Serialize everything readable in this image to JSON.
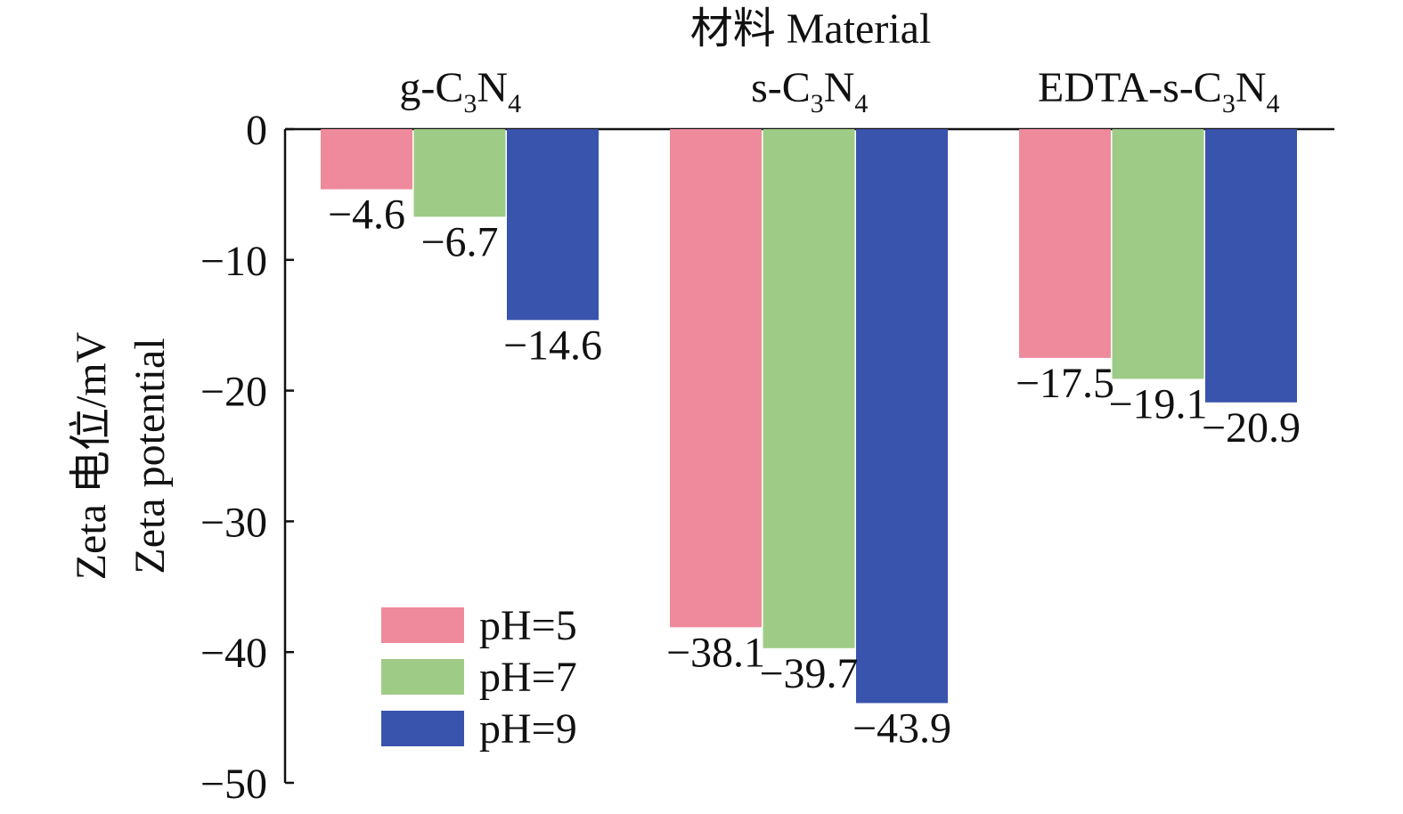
{
  "chart_data": {
    "type": "bar",
    "title": "材料 Material",
    "ylabel_lines": [
      "Zeta 电位/mV",
      "Zeta potential"
    ],
    "categories": [
      {
        "base": "g-C",
        "sub1": "3",
        "mid": "N",
        "sub2": "4"
      },
      {
        "base": "s-C",
        "sub1": "3",
        "mid": "N",
        "sub2": "4"
      },
      {
        "base": "EDTA-s-C",
        "sub1": "3",
        "mid": "N",
        "sub2": "4"
      }
    ],
    "series": [
      {
        "name": "pH=5",
        "color": "#ef8a9c",
        "values": [
          -4.6,
          -38.1,
          -17.5
        ],
        "labels": [
          "−4.6",
          "−38.1",
          "−17.5"
        ]
      },
      {
        "name": "pH=7",
        "color": "#9ecc87",
        "values": [
          -6.7,
          -39.7,
          -19.1
        ],
        "labels": [
          "−6.7",
          "−39.7",
          "−19.1"
        ]
      },
      {
        "name": "pH=9",
        "color": "#3954ad",
        "values": [
          -14.6,
          -43.9,
          -20.9
        ],
        "labels": [
          "−14.6",
          "−43.9",
          "−20.9"
        ]
      }
    ],
    "ylim": [
      -50,
      0
    ],
    "yticks": [
      0,
      -10,
      -20,
      -30,
      -40,
      -50
    ],
    "ytick_labels": [
      "0",
      "−10",
      "−20",
      "−30",
      "−40",
      "−50"
    ],
    "x_axis_position": "top",
    "legend_position": "lower-left",
    "grid": false
  }
}
